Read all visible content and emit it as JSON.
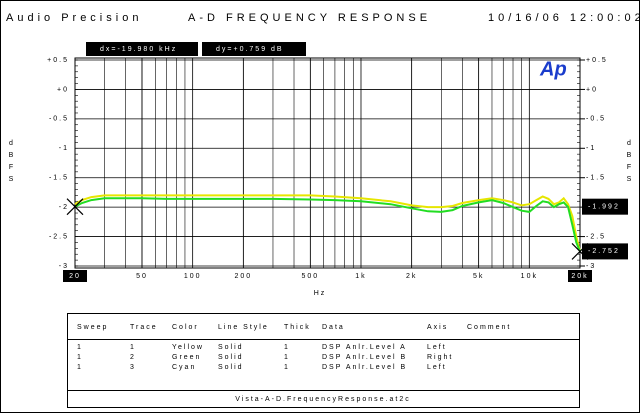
{
  "chart_data": {
    "type": "line",
    "brand": "Audio Precision",
    "title": "A-D FREQUENCY RESPONSE",
    "date": "10/16/06 12:00:02",
    "logo": "Ap",
    "cursor_readouts": {
      "dx": "dx=-19.980 kHz",
      "dy": "dy=+0.759 dB"
    },
    "cursors": [
      {
        "x": 20,
        "y": -1.992,
        "label": "-1.992"
      },
      {
        "x": 20000,
        "y": -2.752,
        "label": "-2.752"
      }
    ],
    "x_label": "Hz",
    "y_label": "dBFS",
    "y2_label": "dBFS",
    "x_log": true,
    "grid": true,
    "xlim": [
      20,
      20000
    ],
    "xticks": [
      20,
      50,
      100,
      200,
      500,
      {
        "value": 1000,
        "label": "1k"
      },
      {
        "value": 2000,
        "label": "2k"
      },
      {
        "value": 5000,
        "label": "5k"
      },
      {
        "value": 10000,
        "label": "10k"
      },
      {
        "value": 20000,
        "label": "20k"
      }
    ],
    "ylim": [
      -3,
      0.5
    ],
    "yticks": [
      {
        "value": 0.5,
        "label": "+0.5"
      },
      {
        "value": 0,
        "label": "+0"
      },
      -0.5,
      -1,
      -1.5,
      -2,
      -2.5,
      -3
    ],
    "y2lim": [
      -3,
      0.5
    ],
    "y2ticks": [
      {
        "value": 0.5,
        "label": "+0.5"
      },
      {
        "value": 0,
        "label": "+0"
      },
      -0.5,
      -1,
      -1.5,
      -2,
      -2.5,
      -3
    ],
    "x": [
      20,
      22,
      25,
      30,
      40,
      50,
      70,
      100,
      150,
      200,
      300,
      500,
      700,
      1000,
      1500,
      2000,
      2500,
      3000,
      3500,
      4000,
      5000,
      6000,
      7000,
      8000,
      9000,
      10000,
      11000,
      12000,
      13000,
      14000,
      15000,
      16000,
      17000,
      18000,
      19000,
      20000
    ],
    "series": [
      {
        "name": "Yellow",
        "color": "#e6e600",
        "values": [
          -1.95,
          -1.88,
          -1.83,
          -1.8,
          -1.8,
          -1.8,
          -1.8,
          -1.8,
          -1.8,
          -1.8,
          -1.8,
          -1.8,
          -1.82,
          -1.85,
          -1.9,
          -1.97,
          -2.0,
          -2.0,
          -1.98,
          -1.93,
          -1.88,
          -1.85,
          -1.88,
          -1.92,
          -1.97,
          -1.95,
          -1.88,
          -1.82,
          -1.86,
          -1.95,
          -1.92,
          -1.85,
          -1.95,
          -2.15,
          -2.5,
          -2.75
        ]
      },
      {
        "name": "Green",
        "color": "#22dd22",
        "values": [
          -1.99,
          -1.93,
          -1.88,
          -1.85,
          -1.85,
          -1.85,
          -1.86,
          -1.86,
          -1.86,
          -1.86,
          -1.86,
          -1.87,
          -1.88,
          -1.9,
          -1.95,
          -2.02,
          -2.07,
          -2.08,
          -2.05,
          -1.98,
          -1.92,
          -1.88,
          -1.93,
          -2.0,
          -2.06,
          -2.08,
          -1.98,
          -1.9,
          -1.92,
          -2.0,
          -1.95,
          -1.92,
          -2.0,
          -2.3,
          -2.6,
          -2.75
        ]
      }
    ]
  },
  "legend_table": {
    "header": [
      "Sweep",
      "Trace",
      "Color",
      "Line Style",
      "Thick",
      "Data",
      "Axis",
      "Comment"
    ],
    "rows": [
      [
        "1",
        "1",
        "Yellow",
        "Solid",
        "1",
        "DSP Anlr.Level A",
        "Left"
      ],
      [
        "1",
        "2",
        "Green",
        "Solid",
        "1",
        "DSP Anlr.Level B",
        "Right"
      ],
      [
        "1",
        "3",
        "Cyan",
        "Solid",
        "1",
        "DSP Anlr.Level B",
        "Left"
      ]
    ],
    "footer": "Vista-A-D.FrequencyResponse.at2c"
  }
}
